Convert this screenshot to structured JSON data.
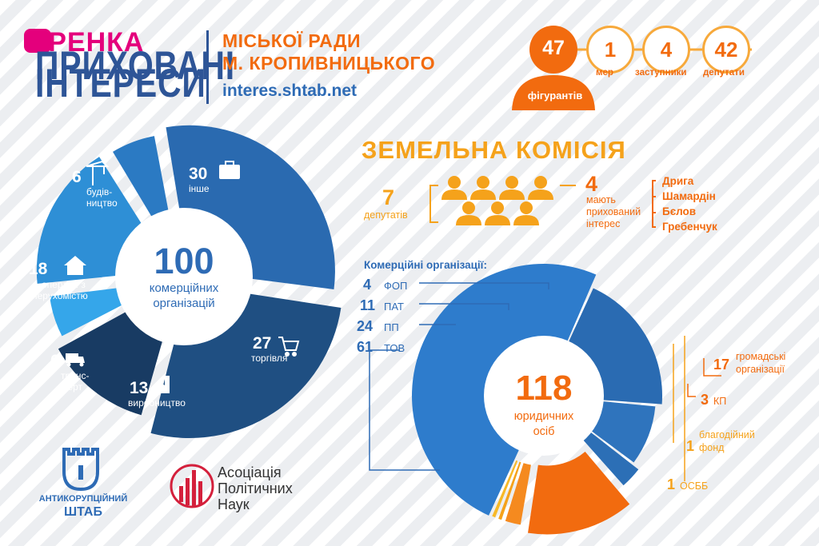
{
  "brand": {
    "top": "ГРЕНКА",
    "line1": "ПРИХОВАНІ",
    "line2": "ІНТЕРЕСИ",
    "head1": "МІСЬКОЇ РАДИ",
    "head2": "М. КРОПИВНИЦЬКОГО",
    "url": "interes.shtab.net"
  },
  "figures": {
    "total": "47",
    "total_label": "фігурантів",
    "items": [
      {
        "value": "1",
        "label": "мер"
      },
      {
        "value": "4",
        "label": "заступники"
      },
      {
        "value": "42",
        "label": "депутати"
      }
    ]
  },
  "land": {
    "title": "ЗЕМЕЛЬНА КОМІСІЯ",
    "deputies_count": "7",
    "deputies_label": "депутатів",
    "interest_count": "4",
    "interest_label_1": "мають",
    "interest_label_2": "прихований",
    "interest_label_3": "інтерес",
    "names": [
      "Дрига",
      "Шамардін",
      "Бєлов",
      "Гребенчук"
    ]
  },
  "colors": {
    "orange": "#f26b0f",
    "yellow": "#f5a21b",
    "navy": "#2e5597",
    "blue": "#2e6bb5"
  },
  "chart_data": [
    {
      "type": "pie",
      "center_value": "100",
      "center_label_1": "комерційних",
      "center_label_2": "організацій",
      "slices": [
        {
          "label": "інше",
          "value": 30,
          "color": "#2a6ab0",
          "icon": "briefcase-icon"
        },
        {
          "label": "торгівля",
          "value": 27,
          "color": "#1f4f82",
          "icon": "cart-icon"
        },
        {
          "label": "виробництво",
          "value": 13,
          "color": "#183b63",
          "icon": "factory-icon"
        },
        {
          "label_1": "транс-",
          "label_2": "порт",
          "value": 6,
          "color": "#35a6ea",
          "icon": "truck-icon"
        },
        {
          "label_1": "операції з",
          "label_2": "нерухомістю",
          "value": 18,
          "color": "#2e8fd6",
          "icon": "house-icon"
        },
        {
          "label_1": "будів-",
          "label_2": "ництво",
          "value": 6,
          "color": "#2b7ac3",
          "icon": "crane-icon"
        }
      ]
    },
    {
      "type": "pie",
      "center_value": "118",
      "center_label_1": "юридичних",
      "center_label_2": "осіб",
      "caption": "Комерційні організації:",
      "slices": [
        {
          "label": "ТОВ",
          "value": 61,
          "color": "#2e7ccc"
        },
        {
          "label": "ПП",
          "value": 24,
          "color": "#2a6bb2"
        },
        {
          "label": "ПАТ",
          "value": 11,
          "color": "#2f74bd"
        },
        {
          "label": "ФОП",
          "value": 4,
          "color": "#2c6fb6"
        },
        {
          "label_1": "громадські",
          "label_2": "організації",
          "value": 17,
          "color": "#f26b0f"
        },
        {
          "label": "КП",
          "value": 3,
          "color": "#f58a1f"
        },
        {
          "label_1": "благодійний",
          "label_2": "фонд",
          "value": 1,
          "color": "#f5a21b"
        },
        {
          "label": "ОСББ",
          "value": 1,
          "color": "#f7b928"
        }
      ]
    }
  ],
  "logos": {
    "shtab_1": "АНТИКОРУПЦІЙНИЙ",
    "shtab_2": "ШТАБ",
    "apn_1": "Асоціація",
    "apn_2": "Політичних",
    "apn_3": "Наук"
  }
}
